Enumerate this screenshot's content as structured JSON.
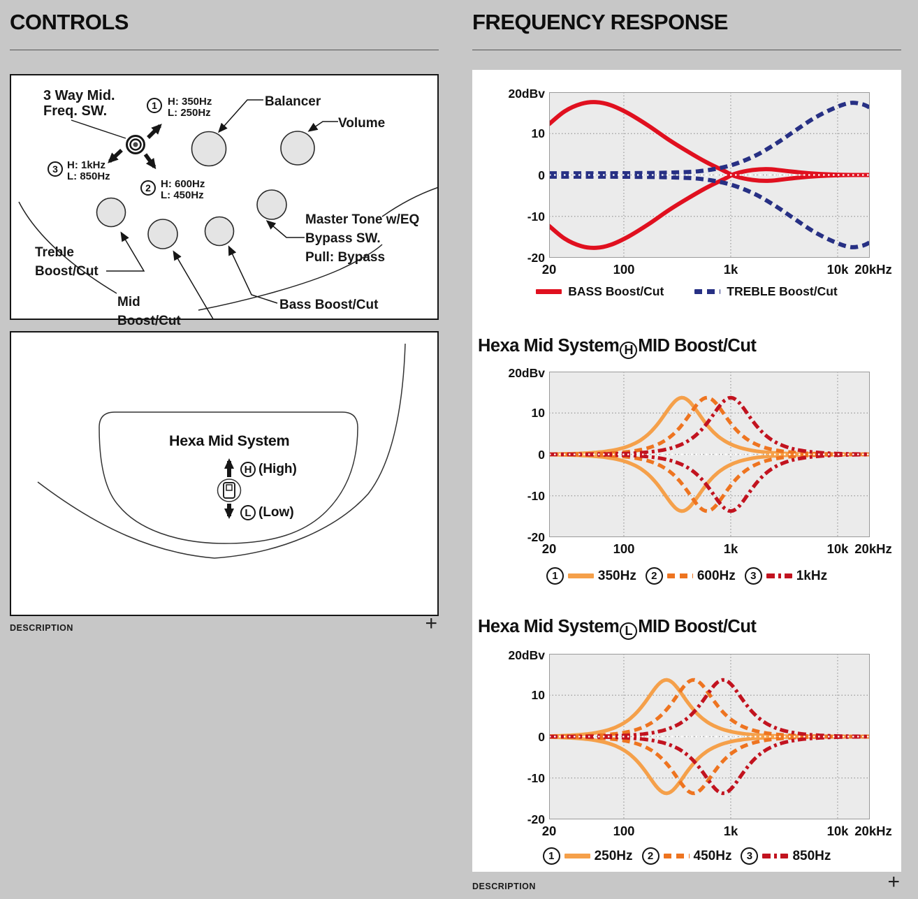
{
  "colors": {
    "page_bg": "#c7c7c7",
    "panel_bg": "#ffffff",
    "plot_bg": "#ebebeb",
    "grid": "#999999",
    "ink": "#111111",
    "red": "#e0101f",
    "navy": "#273084",
    "orange": "#f5a04a",
    "orange_deep": "#ee7420",
    "crimson": "#c2131f"
  },
  "left": {
    "heading": "CONTROLS",
    "diagram1": {
      "freq_switch_label": [
        "3 Way Mid.",
        "Freq. SW."
      ],
      "switch_options": [
        {
          "num": "1",
          "high": "H: 350Hz",
          "low": "L: 250Hz"
        },
        {
          "num": "2",
          "high": "H: 600Hz",
          "low": "L: 450Hz"
        },
        {
          "num": "3",
          "high": "H: 1kHz",
          "low": "L: 850Hz"
        }
      ],
      "knobs": {
        "balancer": "Balancer",
        "volume": "Volume",
        "treble": [
          "Treble",
          "Boost/Cut"
        ],
        "mid": [
          "Mid",
          "Boost/Cut"
        ],
        "bass": "Bass Boost/Cut",
        "master": [
          "Master Tone w/EQ",
          "Bypass SW.",
          "Pull: Bypass"
        ]
      }
    },
    "diagram2": {
      "title": "Hexa Mid System",
      "high_letter": "H",
      "high_label": "(High)",
      "low_letter": "L",
      "low_label": "(Low)"
    },
    "description_label": "DESCRIPTION",
    "expand_label": "+"
  },
  "right": {
    "heading": "FREQUENCY RESPONSE",
    "description_label": "DESCRIPTION",
    "expand_label": "+"
  },
  "chart_data": [
    {
      "id": "bass-treble-response",
      "type": "line",
      "x_scale": "log",
      "x_range": [
        20,
        20000
      ],
      "y_range": [
        -20,
        20
      ],
      "y_unit": "20dBv",
      "y_ticks": [
        "10",
        "0",
        "-10",
        "-20"
      ],
      "y_tick_values": [
        10,
        0,
        -10,
        -20
      ],
      "x_ticks": [
        "20",
        "100",
        "1k",
        "10k",
        "20kHz"
      ],
      "x_tick_values": [
        20,
        100,
        1000,
        10000,
        20000
      ],
      "grid": true,
      "legend_position": "bottom",
      "curves": [
        {
          "name": "BASS Boost/Cut",
          "color": "#e0101f",
          "style": "solid",
          "mirrored": true,
          "anchors": [
            [
              20,
              12.3
            ],
            [
              28,
              15.4
            ],
            [
              40,
              17.2
            ],
            [
              55,
              17.6
            ],
            [
              75,
              16.9
            ],
            [
              110,
              14.9
            ],
            [
              170,
              11.9
            ],
            [
              260,
              8.6
            ],
            [
              400,
              5.6
            ],
            [
              600,
              3.0
            ],
            [
              850,
              1.1
            ],
            [
              1100,
              -0.3
            ],
            [
              1600,
              -1.2
            ],
            [
              2300,
              -1.4
            ],
            [
              3500,
              -0.9
            ],
            [
              5500,
              -0.4
            ],
            [
              9000,
              -0.1
            ],
            [
              14000,
              0
            ],
            [
              20000,
              0
            ]
          ]
        },
        {
          "name": "TREBLE Boost/Cut",
          "color": "#273084",
          "style": "dashed",
          "mirrored": true,
          "anchors": [
            [
              20,
              0.4
            ],
            [
              60,
              0.4
            ],
            [
              150,
              0.45
            ],
            [
              300,
              0.6
            ],
            [
              500,
              0.9
            ],
            [
              800,
              1.7
            ],
            [
              1200,
              3.0
            ],
            [
              1800,
              5.0
            ],
            [
              2700,
              7.7
            ],
            [
              4000,
              10.7
            ],
            [
              6000,
              13.7
            ],
            [
              9000,
              16.0
            ],
            [
              13000,
              17.4
            ],
            [
              17000,
              17.1
            ],
            [
              20000,
              16.3
            ]
          ]
        }
      ],
      "legend": [
        {
          "label": "BASS Boost/Cut",
          "color": "#e0101f",
          "swatch": "solid"
        },
        {
          "label": "TREBLE Boost/Cut",
          "color": "#273084",
          "swatch": "dashed"
        }
      ]
    },
    {
      "id": "hexa-mid-high",
      "type": "line",
      "title": {
        "prefix": "Hexa Mid System",
        "circle": "H",
        "suffix": "MID Boost/Cut"
      },
      "x_scale": "log",
      "x_range": [
        20,
        20000
      ],
      "y_range": [
        -20,
        20
      ],
      "y_unit": "20dBv",
      "y_ticks": [
        "10",
        "0",
        "-10",
        "-20"
      ],
      "y_tick_values": [
        10,
        0,
        -10,
        -20
      ],
      "x_ticks": [
        "20",
        "100",
        "1k",
        "10k",
        "20kHz"
      ],
      "x_tick_values": [
        20,
        100,
        1000,
        10000,
        20000
      ],
      "grid": true,
      "legend_position": "bottom",
      "curves": [
        {
          "name": "350Hz",
          "color": "#f5a04a",
          "style": "solid",
          "mirrored": true,
          "bell": {
            "fc": 350,
            "amp": 13.7,
            "q": 0.85
          }
        },
        {
          "name": "600Hz",
          "color": "#ee7420",
          "style": "dashed",
          "mirrored": true,
          "bell": {
            "fc": 600,
            "amp": 13.7,
            "q": 0.85
          }
        },
        {
          "name": "1kHz",
          "color": "#c2131f",
          "style": "dashdot",
          "mirrored": true,
          "bell": {
            "fc": 1000,
            "amp": 13.7,
            "q": 0.85
          }
        }
      ],
      "legend": [
        {
          "num": "1",
          "label": "350Hz",
          "color": "#f5a04a",
          "swatch": "solid"
        },
        {
          "num": "2",
          "label": "600Hz",
          "color": "#ee7420",
          "swatch": "dashed"
        },
        {
          "num": "3",
          "label": "1kHz",
          "color": "#c2131f",
          "swatch": "dashdot"
        }
      ]
    },
    {
      "id": "hexa-mid-low",
      "type": "line",
      "title": {
        "prefix": "Hexa Mid System",
        "circle": "L",
        "suffix": "MID Boost/Cut"
      },
      "x_scale": "log",
      "x_range": [
        20,
        20000
      ],
      "y_range": [
        -20,
        20
      ],
      "y_unit": "20dBv",
      "y_ticks": [
        "10",
        "0",
        "-10",
        "-20"
      ],
      "y_tick_values": [
        10,
        0,
        -10,
        -20
      ],
      "x_ticks": [
        "20",
        "100",
        "1k",
        "10k",
        "20kHz"
      ],
      "x_tick_values": [
        20,
        100,
        1000,
        10000,
        20000
      ],
      "grid": true,
      "legend_position": "bottom",
      "curves": [
        {
          "name": "250Hz",
          "color": "#f5a04a",
          "style": "solid",
          "mirrored": true,
          "bell": {
            "fc": 250,
            "amp": 13.7,
            "q": 0.85
          }
        },
        {
          "name": "450Hz",
          "color": "#ee7420",
          "style": "dashed",
          "mirrored": true,
          "bell": {
            "fc": 450,
            "amp": 13.7,
            "q": 0.85
          }
        },
        {
          "name": "850Hz",
          "color": "#c2131f",
          "style": "dashdot",
          "mirrored": true,
          "bell": {
            "fc": 850,
            "amp": 13.7,
            "q": 0.85
          }
        }
      ],
      "legend": [
        {
          "num": "1",
          "label": "250Hz",
          "color": "#f5a04a",
          "swatch": "solid"
        },
        {
          "num": "2",
          "label": "450Hz",
          "color": "#ee7420",
          "swatch": "dashed"
        },
        {
          "num": "3",
          "label": "850Hz",
          "color": "#c2131f",
          "swatch": "dashdot"
        }
      ]
    }
  ]
}
